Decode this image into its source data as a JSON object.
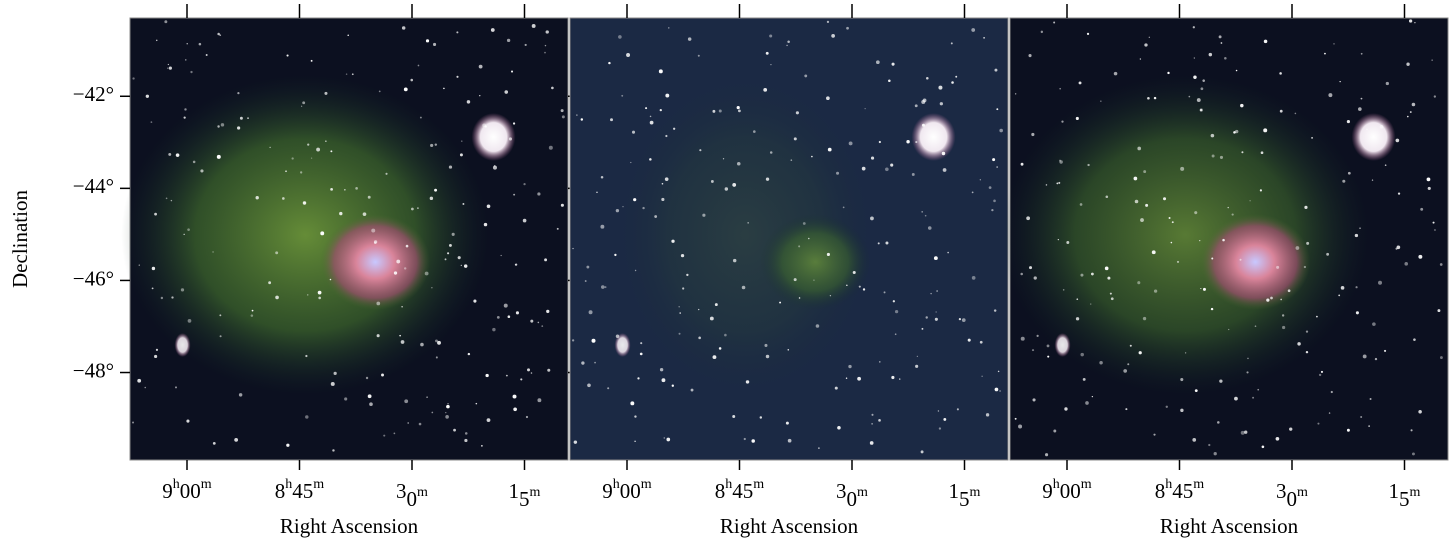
{
  "chart_data": [
    {
      "type": "image",
      "x_label": "Right Ascension",
      "y_label": "Declination",
      "xlim": [
        136.9,
        122.3
      ],
      "xticks": [
        {
          "value": 135,
          "label": "9h00m"
        },
        {
          "value": 131.25,
          "label": "8h45m"
        },
        {
          "value": 127.5,
          "label": "30m"
        },
        {
          "value": 123.75,
          "label": "15m"
        }
      ],
      "ylim": [
        -49.9,
        -40.3
      ],
      "yticks": [
        {
          "value": -42,
          "label": "−42°"
        },
        {
          "value": -44,
          "label": "−44°"
        },
        {
          "value": -46,
          "label": "−46°"
        },
        {
          "value": -48,
          "label": "−48°"
        }
      ]
    },
    {
      "type": "image",
      "x_label": "Right Ascension",
      "xlim": [
        136.9,
        122.3
      ],
      "xticks": [
        {
          "value": 135,
          "label": "9h00m"
        },
        {
          "value": 131.25,
          "label": "8h45m"
        },
        {
          "value": 127.5,
          "label": "30m"
        },
        {
          "value": 123.75,
          "label": "15m"
        }
      ],
      "ylim": [
        -49.9,
        -40.3
      ]
    },
    {
      "type": "image",
      "x_label": "Right Ascension",
      "xlim": [
        136.9,
        122.3
      ],
      "xticks": [
        {
          "value": 135,
          "label": "9h00m"
        },
        {
          "value": 131.25,
          "label": "8h45m"
        },
        {
          "value": 127.5,
          "label": "30m"
        },
        {
          "value": 123.75,
          "label": "15m"
        }
      ],
      "ylim": [
        -49.9,
        -40.3
      ]
    }
  ]
}
